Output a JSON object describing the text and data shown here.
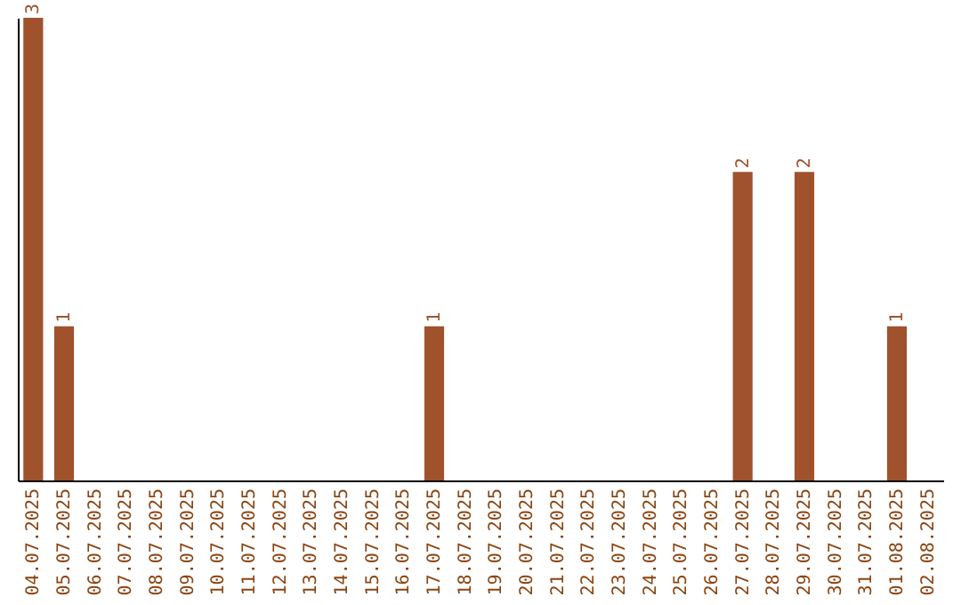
{
  "chart_data": {
    "type": "bar",
    "categories": [
      "04.07.2025",
      "05.07.2025",
      "06.07.2025",
      "07.07.2025",
      "08.07.2025",
      "09.07.2025",
      "10.07.2025",
      "11.07.2025",
      "12.07.2025",
      "13.07.2025",
      "14.07.2025",
      "15.07.2025",
      "16.07.2025",
      "17.07.2025",
      "18.07.2025",
      "19.07.2025",
      "20.07.2025",
      "21.07.2025",
      "22.07.2025",
      "23.07.2025",
      "24.07.2025",
      "25.07.2025",
      "26.07.2025",
      "27.07.2025",
      "28.07.2025",
      "29.07.2025",
      "30.07.2025",
      "31.07.2025",
      "01.08.2025",
      "02.08.2025"
    ],
    "values": [
      3,
      1,
      null,
      null,
      null,
      null,
      null,
      null,
      null,
      null,
      null,
      null,
      null,
      1,
      null,
      null,
      null,
      null,
      null,
      null,
      null,
      null,
      null,
      2,
      null,
      2,
      null,
      null,
      1,
      null
    ],
    "color": "#a0522d",
    "data_labels": true
  }
}
